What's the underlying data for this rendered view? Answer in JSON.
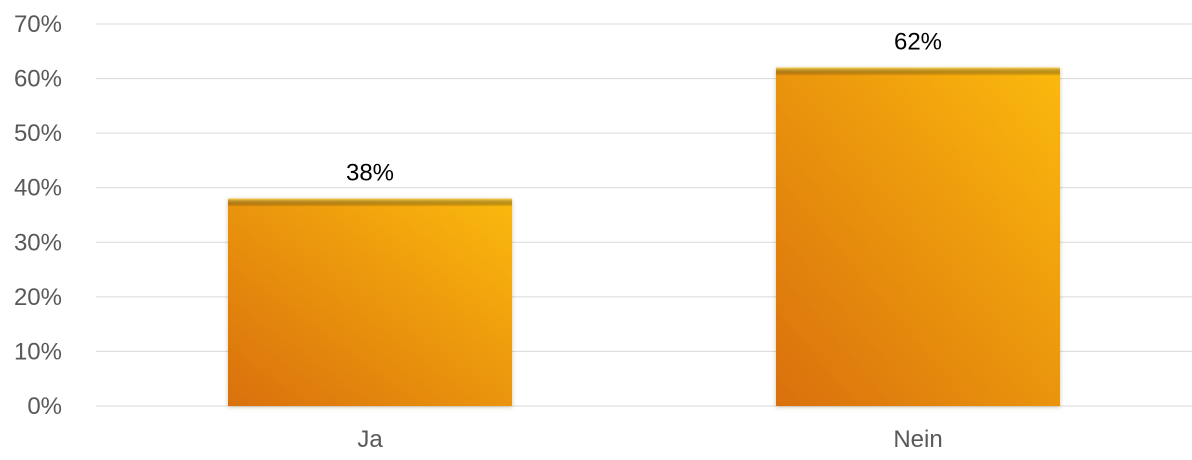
{
  "chart_data": {
    "type": "bar",
    "categories": [
      "Ja",
      "Nein"
    ],
    "values": [
      38,
      62
    ],
    "data_labels": [
      "38%",
      "62%"
    ],
    "y_ticks": [
      "0%",
      "10%",
      "20%",
      "30%",
      "40%",
      "50%",
      "60%",
      "70%"
    ],
    "ylim": [
      0,
      70
    ],
    "y_unit": "%",
    "grid": true,
    "legend": "none",
    "title": "",
    "xlabel": "",
    "ylabel": "",
    "colors": {
      "bar_light": "#fbb90f",
      "bar_dark": "#d9700a",
      "bar_top": "#fdd34d",
      "gridline": "#d9d9d9",
      "axis_text": "#595959",
      "label_text": "#000000"
    }
  }
}
